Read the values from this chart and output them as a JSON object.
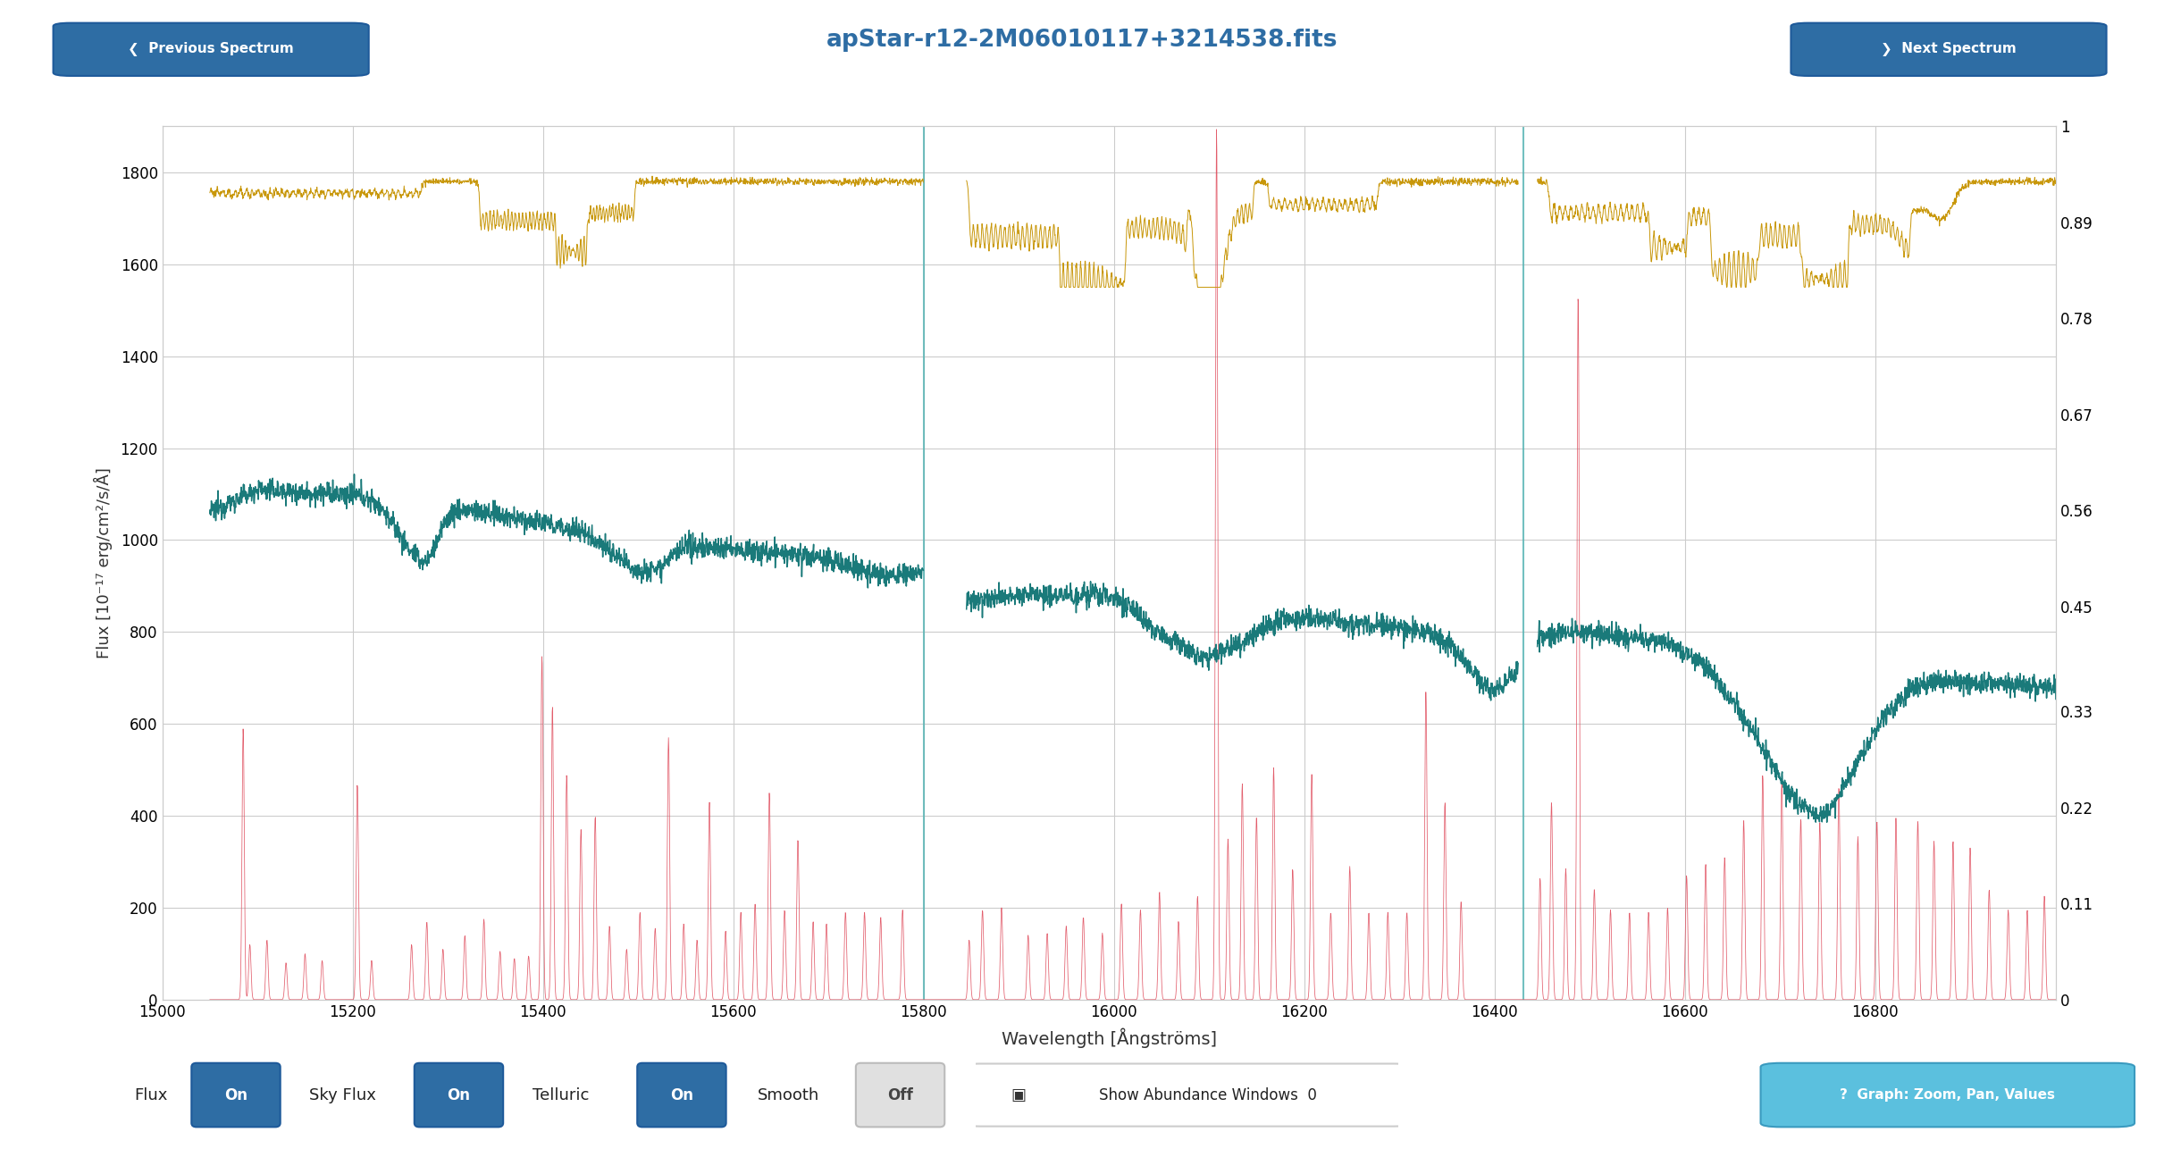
{
  "title": "apStar-r12-2M06010117+3214538.fits",
  "title_color": "#2E6DA4",
  "xlabel": "Wavelength [Ångströms]",
  "ylabel": "Flux [10⁻¹⁷ erg/cm²/s/Å]",
  "xlim": [
    15050,
    16990
  ],
  "ylim_left": [
    0,
    1900
  ],
  "ylim_right": [
    0,
    1.0
  ],
  "right_ticks": [
    0,
    0.11,
    0.22,
    0.33,
    0.45,
    0.56,
    0.67,
    0.78,
    0.89,
    1.0
  ],
  "left_ticks": [
    0,
    200,
    400,
    600,
    800,
    1000,
    1200,
    1400,
    1600,
    1800
  ],
  "xticks": [
    15000,
    15200,
    15400,
    15600,
    15800,
    16000,
    16200,
    16400,
    16600,
    16800
  ],
  "science_color": "#1a7a7a",
  "sky_color": "#e05060",
  "telluric_color": "#c8970a",
  "bg_color": "#ffffff",
  "grid_color": "#cccccc",
  "vline_color": "#5ab5b5",
  "vline_positions": [
    15800,
    16430
  ],
  "button_color_blue": "#2E6DA4",
  "button_color_cyan": "#5bc0de"
}
